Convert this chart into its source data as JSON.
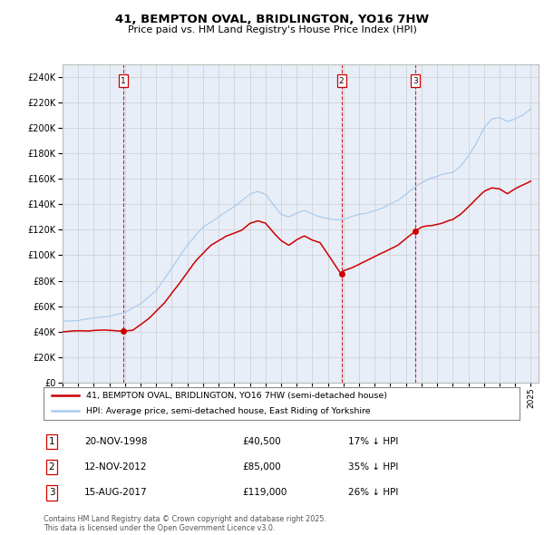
{
  "title": "41, BEMPTON OVAL, BRIDLINGTON, YO16 7HW",
  "subtitle": "Price paid vs. HM Land Registry's House Price Index (HPI)",
  "legend_line1": "41, BEMPTON OVAL, BRIDLINGTON, YO16 7HW (semi-detached house)",
  "legend_line2": "HPI: Average price, semi-detached house, East Riding of Yorkshire",
  "footer": "Contains HM Land Registry data © Crown copyright and database right 2025.\nThis data is licensed under the Open Government Licence v3.0.",
  "price_color": "#cc0000",
  "hpi_color": "#aaccee",
  "grid_color": "#cccccc",
  "background_color": "#e8eef8",
  "transactions": [
    {
      "label": "1",
      "date_str": "20-NOV-1998",
      "date_num": 1998.89,
      "price": 40500,
      "pct": "17% ↓ HPI"
    },
    {
      "label": "2",
      "date_str": "12-NOV-2012",
      "date_num": 2012.87,
      "price": 85000,
      "pct": "35% ↓ HPI"
    },
    {
      "label": "3",
      "date_str": "15-AUG-2017",
      "date_num": 2017.62,
      "price": 119000,
      "pct": "26% ↓ HPI"
    }
  ],
  "ylim": [
    0,
    250000
  ],
  "xlim_start": 1995.0,
  "xlim_end": 2025.5,
  "hpi_anchors_x": [
    1995.0,
    1996,
    1997,
    1998,
    1999,
    2000,
    2001,
    2002,
    2003,
    2004,
    2005,
    2006,
    2007,
    2007.5,
    2008,
    2008.5,
    2009,
    2009.5,
    2010,
    2010.5,
    2011,
    2011.5,
    2012,
    2012.5,
    2013,
    2013.5,
    2014,
    2014.5,
    2015,
    2015.5,
    2016,
    2016.5,
    2017,
    2017.5,
    2018,
    2018.5,
    2019,
    2019.5,
    2020,
    2020.5,
    2021,
    2021.5,
    2022,
    2022.5,
    2023,
    2023.5,
    2024,
    2024.5,
    2025.0
  ],
  "hpi_anchors_y": [
    48000,
    49000,
    51000,
    52000,
    55000,
    62000,
    72000,
    90000,
    108000,
    122000,
    130000,
    138000,
    148000,
    150000,
    148000,
    140000,
    132000,
    130000,
    133000,
    135000,
    132000,
    130000,
    129000,
    128000,
    128000,
    130000,
    132000,
    133000,
    135000,
    137000,
    140000,
    143000,
    148000,
    153000,
    157000,
    160000,
    162000,
    164000,
    165000,
    170000,
    178000,
    188000,
    200000,
    207000,
    208000,
    205000,
    207000,
    210000,
    215000
  ],
  "price_anchors_x": [
    1995,
    1996,
    1997,
    1998.89,
    1999.5,
    2000.5,
    2001.5,
    2002.5,
    2003.5,
    2004.5,
    2005.5,
    2006.5,
    2007,
    2007.5,
    2008,
    2008.5,
    2009,
    2009.5,
    2010,
    2010.5,
    2011,
    2011.5,
    2012.87,
    2013,
    2013.5,
    2014,
    2014.5,
    2015,
    2015.5,
    2016,
    2016.5,
    2017.62,
    2018,
    2018.5,
    2019,
    2019.5,
    2020,
    2020.5,
    2021,
    2021.5,
    2022,
    2022.5,
    2023,
    2023.5,
    2024,
    2024.5,
    2025.0
  ],
  "price_anchors_y": [
    40000,
    40500,
    41000,
    40500,
    41000,
    50000,
    62000,
    78000,
    95000,
    108000,
    115000,
    120000,
    125000,
    127000,
    125000,
    118000,
    112000,
    108000,
    112000,
    115000,
    112000,
    110000,
    85000,
    88000,
    90000,
    93000,
    96000,
    99000,
    102000,
    105000,
    108000,
    119000,
    122000,
    123000,
    124000,
    126000,
    128000,
    132000,
    138000,
    144000,
    150000,
    153000,
    152000,
    148000,
    152000,
    155000,
    158000
  ]
}
